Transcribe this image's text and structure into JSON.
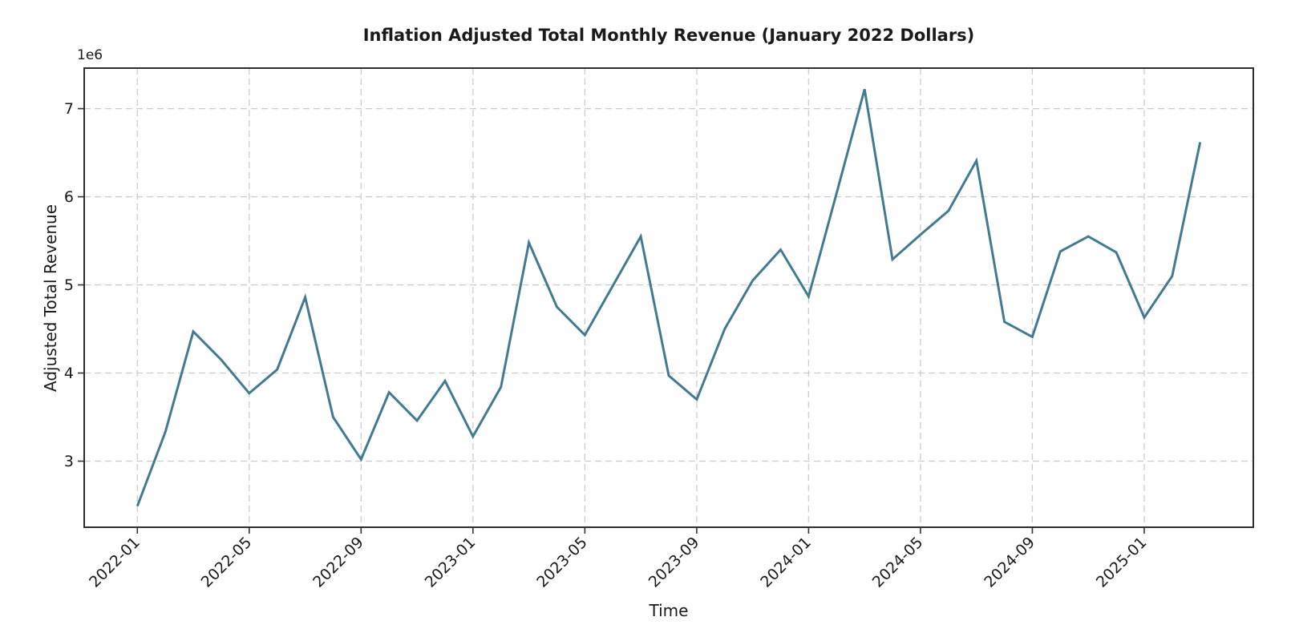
{
  "chart_data": {
    "type": "line",
    "title": "Inflation Adjusted Total Monthly Revenue (January 2022 Dollars)",
    "xlabel": "Time",
    "ylabel": "Adjusted Total Revenue",
    "y_offset_label": "1e6",
    "x": [
      "2022-01",
      "2022-02",
      "2022-03",
      "2022-04",
      "2022-05",
      "2022-06",
      "2022-07",
      "2022-08",
      "2022-09",
      "2022-10",
      "2022-11",
      "2022-12",
      "2023-01",
      "2023-02",
      "2023-03",
      "2023-04",
      "2023-05",
      "2023-06",
      "2023-07",
      "2023-08",
      "2023-09",
      "2023-10",
      "2023-11",
      "2023-12",
      "2024-01",
      "2024-02",
      "2024-03",
      "2024-04",
      "2024-05",
      "2024-06",
      "2024-07",
      "2024-08",
      "2024-09",
      "2024-10",
      "2024-11",
      "2024-12",
      "2025-01",
      "2025-02",
      "2025-03"
    ],
    "values_millions": [
      2.49,
      3.33,
      4.47,
      4.15,
      3.77,
      4.04,
      4.86,
      3.5,
      3.02,
      3.78,
      3.46,
      3.91,
      3.28,
      3.84,
      5.48,
      4.75,
      4.43,
      4.99,
      5.55,
      3.97,
      3.7,
      4.5,
      5.05,
      5.4,
      4.87,
      6.04,
      7.22,
      5.29,
      5.57,
      5.84,
      6.41,
      4.58,
      4.41,
      5.38,
      5.55,
      5.37,
      4.63,
      5.1,
      6.62
    ],
    "y_ticks": [
      3,
      4,
      5,
      6,
      7
    ],
    "x_tick_labels": [
      "2022-01",
      "2022-05",
      "2022-09",
      "2023-01",
      "2023-05",
      "2023-09",
      "2024-01",
      "2024-05",
      "2024-09",
      "2025-01"
    ],
    "x_tick_indices": [
      0,
      4,
      8,
      12,
      16,
      20,
      24,
      28,
      32,
      36
    ],
    "ylim_millions": [
      2.25,
      7.46
    ],
    "xlim_month_index": [
      -1.9,
      39.9
    ],
    "grid": true,
    "x_tick_rotation_deg": 45,
    "line_color": "#447a90",
    "grid_color": "#cccccc",
    "spine_color": "#2e2e2e",
    "text_color": "#1a1a1a",
    "background_color": "#ffffff"
  }
}
